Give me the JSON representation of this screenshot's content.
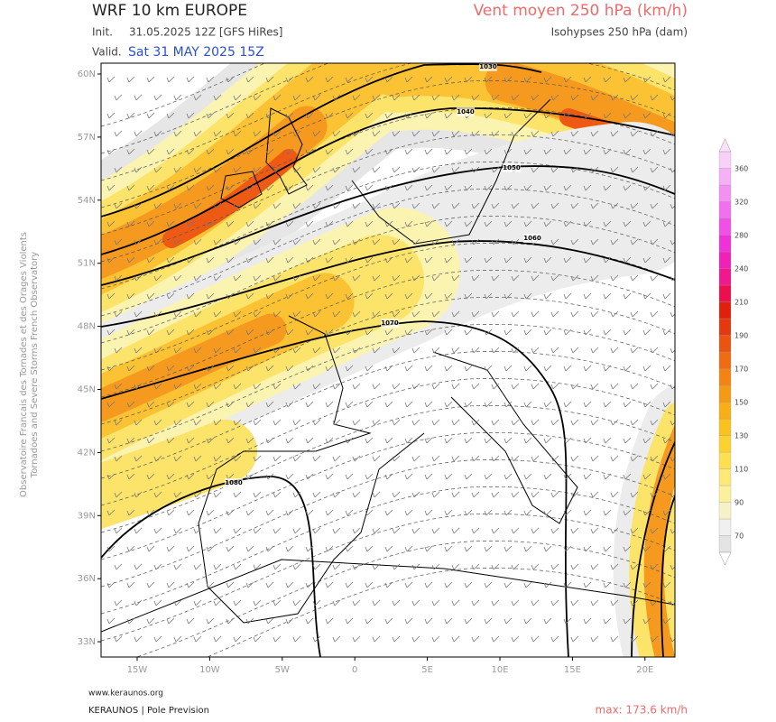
{
  "header": {
    "title": "WRF 10 km EUROPE",
    "init_label": "Init.",
    "init": "31.05.2025 12Z [GFS HiRes]",
    "valid_label": "Valid.",
    "valid": "Sat 31 MAY 2025 15Z",
    "parameter": "Vent moyen 250 hPa (km/h)",
    "contours": "Isohypses 250 hPa (dam)"
  },
  "map": {
    "lat_labels": [
      "60N",
      "57N",
      "54N",
      "51N",
      "48N",
      "45N",
      "42N",
      "39N",
      "36N",
      "33N"
    ],
    "lon_labels": [
      "15W",
      "10W",
      "5W",
      "0",
      "5E",
      "10E",
      "15E",
      "20E"
    ],
    "contour_labels": [
      1030,
      1040,
      1050,
      1060,
      1070,
      1080
    ]
  },
  "colorbar": {
    "ticks": [
      70,
      90,
      110,
      130,
      150,
      170,
      190,
      210,
      240,
      280,
      320,
      360
    ]
  },
  "side_text": [
    "Observatoire Francais des Tornades et des Orages Violents",
    "Tornadoes and Severe Storms French Observatory"
  ],
  "footer": {
    "website": "www.keraunos.org",
    "credit": "KERAUNOS | Pole Prevision",
    "max": "max: 173.6 km/h"
  }
}
